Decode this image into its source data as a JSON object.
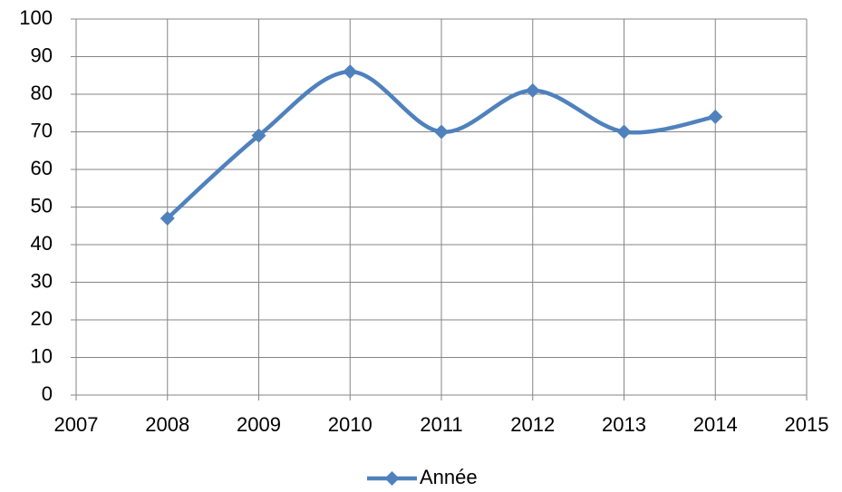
{
  "chart_data": {
    "type": "line",
    "x": [
      2008,
      2009,
      2010,
      2011,
      2012,
      2013,
      2014
    ],
    "xlim": [
      2007,
      2015
    ],
    "xticks": [
      2007,
      2008,
      2009,
      2010,
      2011,
      2012,
      2013,
      2014,
      2015
    ],
    "ylim": [
      0,
      100
    ],
    "yticks": [
      0,
      10,
      20,
      30,
      40,
      50,
      60,
      70,
      80,
      90,
      100
    ],
    "series": [
      {
        "name": "Année",
        "color": "#4f81bd",
        "values": [
          47,
          69,
          86,
          70,
          81,
          70,
          74
        ]
      }
    ],
    "grid": true,
    "smooth": true,
    "legend": "bottom"
  }
}
